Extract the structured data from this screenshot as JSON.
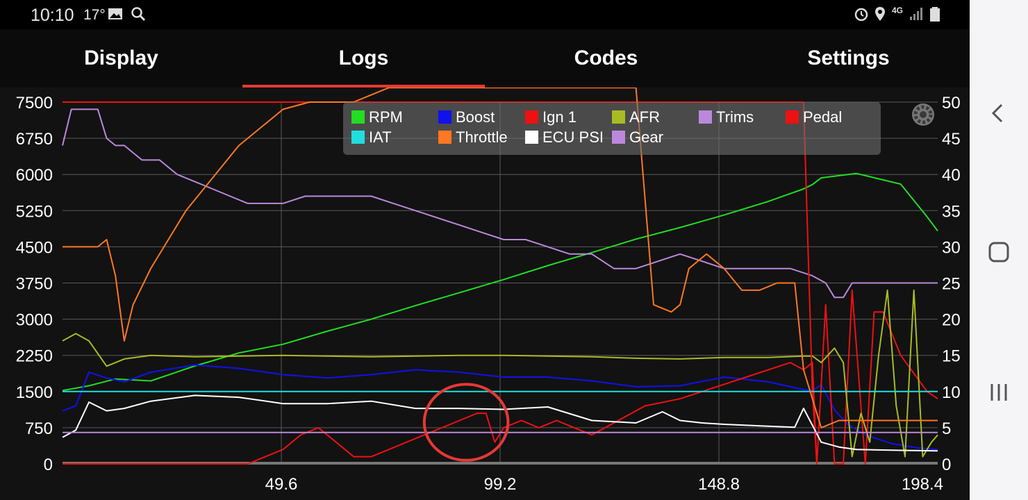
{
  "status": {
    "time": "10:10",
    "temp": "17°",
    "network": "4G"
  },
  "tabs": [
    {
      "label": "Display",
      "active": false
    },
    {
      "label": "Logs",
      "active": true
    },
    {
      "label": "Codes",
      "active": false
    },
    {
      "label": "Settings",
      "active": false
    }
  ],
  "icons": {
    "gallery": "image-icon",
    "search": "search-icon",
    "alarm": "alarm-icon",
    "location": "location-icon",
    "signal": "signal-icon",
    "battery": "battery-icon",
    "settings": "gear-icon",
    "back": "back-icon",
    "home": "home-icon",
    "recents": "recents-icon"
  },
  "chart_data": {
    "type": "line",
    "grid": true,
    "legend_position": "top-center",
    "x_ticks": [
      "49.6",
      "99.2",
      "148.8",
      "198.4"
    ],
    "x_tick_values": [
      49.6,
      99.2,
      148.8,
      198.4
    ],
    "xlim": [
      0,
      198.4
    ],
    "y_left_ticks": [
      "7500",
      "6750",
      "6000",
      "5250",
      "4500",
      "3750",
      "3000",
      "2250",
      "1500",
      "750",
      "0"
    ],
    "y_right_ticks": [
      "50",
      "45",
      "40",
      "35",
      "30",
      "25",
      "20",
      "15",
      "10",
      "5",
      "0"
    ],
    "ylim_left": [
      0,
      7500
    ],
    "ylim_right": [
      0,
      50
    ],
    "legend": [
      {
        "name": "RPM",
        "color": "#22dd22"
      },
      {
        "name": "Boost",
        "color": "#1111ee"
      },
      {
        "name": "Ign 1",
        "color": "#ee1111"
      },
      {
        "name": "AFR",
        "color": "#aabb22"
      },
      {
        "name": "Trims",
        "color": "#bb88dd"
      },
      {
        "name": "Pedal",
        "color": "#ee1111"
      },
      {
        "name": "IAT",
        "color": "#22dddd"
      },
      {
        "name": "Throttle",
        "color": "#ff7722"
      },
      {
        "name": "ECU PSI",
        "color": "#ffffff"
      },
      {
        "name": "Gear",
        "color": "#bb88dd"
      }
    ],
    "series": [
      {
        "name": "RPM",
        "axis": "left",
        "color": "#22dd22",
        "x": [
          0,
          6,
          12,
          20,
          30,
          40,
          50,
          60,
          70,
          80,
          90,
          100,
          110,
          120,
          130,
          140,
          150,
          160,
          168,
          170,
          172,
          180,
          190,
          196,
          198.4
        ],
        "y": [
          1520,
          1620,
          1760,
          1720,
          2030,
          2300,
          2480,
          2750,
          3000,
          3280,
          3550,
          3820,
          4110,
          4380,
          4660,
          4900,
          5160,
          5440,
          5700,
          5790,
          5930,
          6020,
          5800,
          5120,
          4830
        ]
      },
      {
        "name": "Boost",
        "axis": "left",
        "color": "#1111ee",
        "x": [
          0,
          3,
          6,
          10,
          14,
          20,
          30,
          40,
          50,
          60,
          70,
          80,
          90,
          100,
          110,
          120,
          130,
          140,
          150,
          160,
          168,
          170,
          172,
          175,
          178,
          182,
          188,
          194,
          198.4
        ],
        "y": [
          1100,
          1200,
          1900,
          1780,
          1700,
          1900,
          2050,
          1980,
          1850,
          1780,
          1850,
          1950,
          1900,
          1800,
          1800,
          1720,
          1600,
          1620,
          1800,
          1700,
          1540,
          1520,
          1640,
          1120,
          820,
          600,
          420,
          330,
          300
        ]
      },
      {
        "name": "Ign 1",
        "axis": "right",
        "color": "#ee1111",
        "x": [
          0,
          42,
          46,
          50,
          54,
          58,
          62,
          66,
          70,
          74,
          78,
          82,
          86,
          90,
          94,
          96,
          98,
          100,
          104,
          108,
          112,
          116,
          120,
          126,
          132,
          140,
          150,
          160,
          165,
          168,
          170,
          171,
          173,
          175,
          177,
          179,
          182,
          184,
          186,
          190,
          196,
          198.4
        ],
        "y": [
          0,
          0,
          1,
          2,
          4,
          5,
          3,
          1,
          1,
          2,
          3,
          4,
          5,
          6,
          7,
          7,
          3,
          5,
          6,
          5,
          6,
          5,
          4,
          6,
          8,
          9,
          11,
          13,
          14,
          13,
          14,
          0,
          22,
          0,
          0,
          24,
          0,
          21,
          21,
          15,
          10,
          9
        ]
      },
      {
        "name": "AFR",
        "axis": "right",
        "color": "#aabb22",
        "x": [
          0,
          3,
          6,
          10,
          14,
          20,
          30,
          40,
          50,
          60,
          70,
          80,
          90,
          100,
          110,
          120,
          130,
          140,
          150,
          160,
          168,
          170,
          172,
          175,
          177,
          179,
          181,
          183,
          185,
          187,
          189,
          191,
          193,
          195,
          197,
          198.4
        ],
        "y": [
          17,
          18,
          17,
          13.5,
          14.5,
          15,
          14.8,
          14.9,
          15,
          14.9,
          14.8,
          14.9,
          15,
          15,
          14.9,
          14.8,
          14.6,
          14.5,
          14.7,
          14.7,
          14.9,
          14.9,
          14,
          16,
          14,
          1,
          7,
          3,
          15,
          24,
          8,
          1,
          24,
          1,
          3,
          4
        ]
      },
      {
        "name": "Trims",
        "axis": "right",
        "color": "#bb88dd",
        "x": [
          0,
          2,
          4,
          6,
          8,
          10,
          12,
          14,
          18,
          22,
          26,
          30,
          34,
          38,
          42,
          46,
          50,
          55,
          60,
          65,
          70,
          75,
          80,
          85,
          90,
          95,
          100,
          105,
          110,
          115,
          120,
          125,
          130,
          135,
          140,
          145,
          150,
          155,
          160,
          165,
          170,
          173,
          175,
          177,
          179,
          181,
          190,
          198.4
        ],
        "y": [
          44,
          49,
          49,
          49,
          49,
          45,
          44,
          44,
          42,
          42,
          40,
          39,
          38,
          37,
          36,
          36,
          36,
          37,
          37,
          37,
          37,
          36,
          35,
          34,
          33,
          32,
          31,
          31,
          30,
          29,
          29,
          27,
          27,
          28,
          29,
          28,
          27,
          27,
          27,
          27,
          26,
          25,
          23,
          23,
          25,
          25,
          25,
          25
        ]
      },
      {
        "name": "Pedal",
        "axis": "right",
        "color": "#ee1111",
        "x": [
          0,
          166,
          168,
          170,
          171
        ],
        "y": [
          50,
          50,
          50,
          10,
          0
        ]
      },
      {
        "name": "IAT",
        "axis": "left",
        "color": "#22dddd",
        "x": [
          0,
          198.4
        ],
        "y": [
          1500,
          1500
        ]
      },
      {
        "name": "Throttle",
        "axis": "right",
        "color": "#ff7722",
        "x": [
          0,
          6,
          8,
          10,
          12,
          14,
          16,
          20,
          24,
          28,
          32,
          36,
          40,
          46,
          50,
          56,
          60,
          66,
          70,
          74,
          78,
          84,
          88,
          130,
          134,
          138,
          140,
          142,
          146,
          150,
          154,
          158,
          162,
          165,
          166,
          168,
          170,
          172,
          176,
          182,
          190,
          198.4
        ],
        "y": [
          30,
          30,
          30,
          31,
          26,
          17,
          22,
          27,
          31,
          35,
          38,
          41,
          44,
          47,
          49,
          50,
          50,
          50,
          51,
          52,
          52,
          52,
          52,
          52,
          22,
          21,
          22,
          27,
          29,
          27,
          24,
          24,
          25,
          25,
          25,
          13,
          9,
          5,
          6,
          6,
          6,
          6
        ]
      },
      {
        "name": "ECU PSI",
        "axis": "left",
        "color": "#ffffff",
        "x": [
          0,
          3,
          6,
          10,
          14,
          20,
          30,
          40,
          50,
          60,
          70,
          80,
          90,
          100,
          110,
          120,
          130,
          136,
          140,
          145,
          150,
          160,
          166,
          168,
          170,
          172,
          176,
          180,
          190,
          198.4
        ],
        "y": [
          550,
          700,
          1280,
          1100,
          1150,
          1300,
          1420,
          1380,
          1250,
          1250,
          1300,
          1150,
          1150,
          1130,
          1180,
          900,
          850,
          1080,
          900,
          850,
          820,
          780,
          760,
          1150,
          800,
          450,
          350,
          300,
          280,
          270
        ]
      },
      {
        "name": "Gear",
        "axis": "left",
        "color": "#bb88dd",
        "x": [
          0,
          198.4
        ],
        "y": [
          650,
          650
        ]
      }
    ],
    "annotations": [
      {
        "type": "circle",
        "color": "#e53935",
        "x_range": [
          82,
          101
        ],
        "y_range_right": [
          0.5,
          11
        ]
      }
    ]
  }
}
